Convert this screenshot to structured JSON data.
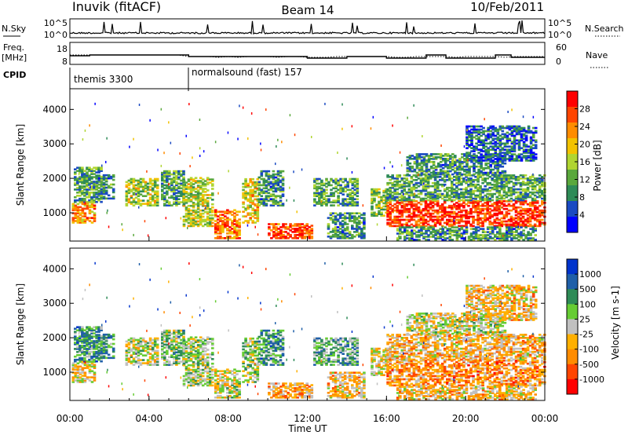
{
  "header": {
    "station": "Inuvik (fitACF)",
    "beam": "Beam 14",
    "date": "10/Feb/2011"
  },
  "side_labels": {
    "nsky": "N.Sky",
    "freq": "Freq.",
    "freq_unit": "[MHz]",
    "cpid": "CPID",
    "nsearch": "N.Search",
    "nave": "Nave"
  },
  "cpid_segments": [
    "themis 3300",
    "normalsound (fast) 157"
  ],
  "colors": {
    "power": [
      "#0000ff",
      "#1a4ac2",
      "#2e8b57",
      "#5aa83c",
      "#b0d531",
      "#f2c200",
      "#ff8c00",
      "#ff4500",
      "#ff0000"
    ],
    "velocity": [
      "#0033cc",
      "#1f5fa8",
      "#2e8b57",
      "#66cc33",
      "#c0c0c0",
      "#ffb000",
      "#ff8c00",
      "#ff4500",
      "#ff0000"
    ]
  },
  "chart_data": [
    {
      "type": "line",
      "name": "noise-panel",
      "left_axis_ticks": [
        "10^5",
        "10^0"
      ],
      "right_axis_ticks": [
        "10^5",
        "10^0"
      ]
    },
    {
      "type": "line",
      "name": "freq-nave-panel",
      "left_axis_ticks": [
        "18",
        "8"
      ],
      "right_axis_ticks": [
        "60",
        "0"
      ],
      "cpid_change_time": "06:00"
    },
    {
      "type": "heatmap",
      "name": "power",
      "ylabel": "Slant Range [km]",
      "yticks": [
        "1000",
        "2000",
        "3000",
        "4000"
      ],
      "ylim": [
        180,
        4600
      ],
      "xlim": [
        0,
        24
      ],
      "colorbar_label": "Power [dB]",
      "colorbar_ticks": [
        "4",
        "8",
        "12",
        "16",
        "20",
        "24",
        "28"
      ],
      "colorbar_range": [
        0,
        32
      ]
    },
    {
      "type": "heatmap",
      "name": "velocity",
      "ylabel": "Slant Range [km]",
      "yticks": [
        "1000",
        "2000",
        "3000",
        "4000"
      ],
      "ylim": [
        180,
        4600
      ],
      "xlim": [
        0,
        24
      ],
      "colorbar_label": "Velocity [m s-1]",
      "colorbar_ticks": [
        "1000",
        "500",
        "100",
        "25",
        "-25",
        "-100",
        "-500",
        "-1000"
      ]
    }
  ],
  "time_axis": {
    "ticks": [
      "00:00",
      "04:00",
      "08:00",
      "12:00",
      "16:00",
      "20:00",
      "00:00"
    ],
    "label": "Time UT"
  }
}
